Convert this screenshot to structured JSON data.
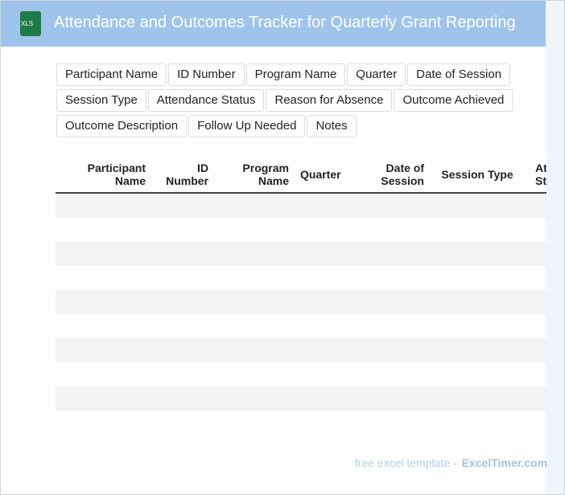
{
  "header": {
    "icon": "XLS",
    "title": "Attendance and Outcomes Tracker for Quarterly Grant Reporting"
  },
  "fields": [
    "Participant Name",
    "ID Number",
    "Program Name",
    "Quarter",
    "Date of Session",
    "Session Type",
    "Attendance Status",
    "Reason for Absence",
    "Outcome Achieved",
    "Outcome Description",
    "Follow Up Needed",
    "Notes"
  ],
  "table": {
    "columns": [
      "Participant Name",
      "ID Number",
      "Program Name",
      "Quarter",
      "Date of Session",
      "Session Type",
      "Attendance Status"
    ]
  },
  "footer": {
    "text": "free excel template -",
    "link": "ExcelTimer.com"
  }
}
